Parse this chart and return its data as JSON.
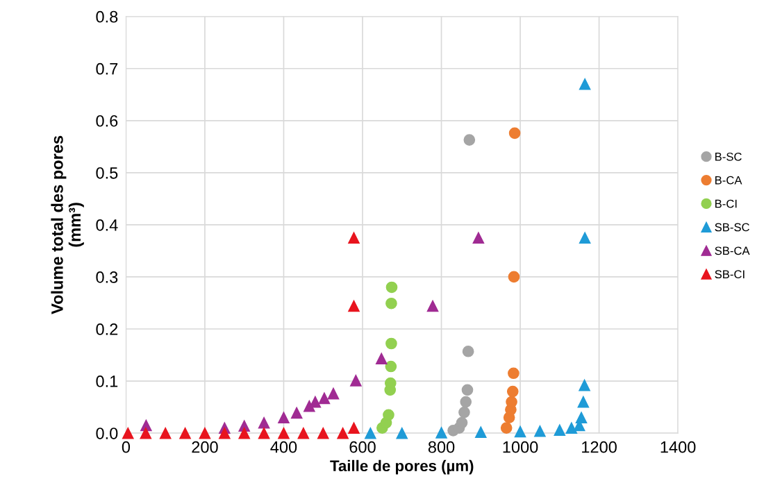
{
  "chart_data": {
    "type": "scatter",
    "xlabel": "Taille de pores (µm)",
    "ylabel": "Volume total des pores\n(mm³)",
    "xlim": [
      0,
      1400
    ],
    "xticks": [
      0,
      200,
      400,
      600,
      800,
      1000,
      1200,
      1400
    ],
    "ylim": [
      0,
      0.8
    ],
    "yticks": [
      {
        "value": 0,
        "label": "0.0"
      },
      {
        "value": 0.1,
        "label": "0.1"
      },
      {
        "value": 0.2,
        "label": "0.2"
      },
      {
        "value": 0.3,
        "label": "0.3"
      },
      {
        "value": 0.4,
        "label": "0.4"
      },
      {
        "value": 0.5,
        "label": "0.5"
      },
      {
        "value": 0.6,
        "label": "0.6"
      },
      {
        "value": 0.7,
        "label": "0.7"
      },
      {
        "value": 0.8,
        "label": "0.8"
      }
    ],
    "grid": true,
    "legend": "right",
    "series": [
      {
        "name": "B-SC",
        "color": "#a5a5a5",
        "marker": "circle",
        "x": [
          830,
          845,
          852,
          858,
          862,
          866,
          868,
          871
        ],
        "values": [
          0.005,
          0.01,
          0.02,
          0.04,
          0.06,
          0.083,
          0.157,
          0.563
        ]
      },
      {
        "name": "B-CA",
        "color": "#ed7d31",
        "marker": "circle",
        "x": [
          965,
          972,
          976,
          978,
          981,
          983,
          984,
          986
        ],
        "values": [
          0.01,
          0.03,
          0.045,
          0.06,
          0.08,
          0.115,
          0.3,
          0.576
        ]
      },
      {
        "name": "B-CI",
        "color": "#92d050",
        "marker": "circle",
        "x": [
          650,
          660,
          666,
          670,
          671,
          672,
          673,
          673,
          674
        ],
        "values": [
          0.01,
          0.02,
          0.035,
          0.083,
          0.096,
          0.128,
          0.172,
          0.249,
          0.28
        ]
      },
      {
        "name": "SB-SC",
        "color": "#1f9bd7",
        "marker": "triangle",
        "x": [
          620,
          700,
          800,
          900,
          1000,
          1050,
          1100,
          1130,
          1150,
          1155,
          1160,
          1163,
          1164,
          1164
        ],
        "values": [
          0,
          0,
          0.001,
          0.002,
          0.003,
          0.004,
          0.006,
          0.01,
          0.015,
          0.03,
          0.06,
          0.092,
          0.375,
          0.67
        ]
      },
      {
        "name": "SB-CA",
        "color": "#a02b93",
        "marker": "triangle",
        "x": [
          51,
          250,
          300,
          350,
          400,
          433,
          465,
          480,
          503,
          526,
          583,
          648,
          778,
          894
        ],
        "values": [
          0.015,
          0.01,
          0.014,
          0.02,
          0.03,
          0.039,
          0.052,
          0.06,
          0.067,
          0.076,
          0.101,
          0.143,
          0.244,
          0.375
        ]
      },
      {
        "name": "SB-CI",
        "color": "#e8141e",
        "marker": "triangle",
        "x": [
          5,
          50,
          100,
          150,
          200,
          250,
          300,
          350,
          400,
          450,
          500,
          550,
          578,
          578,
          578
        ],
        "values": [
          0,
          0,
          0,
          0,
          0,
          0,
          0,
          0,
          0,
          0,
          0,
          0,
          0.01,
          0.244,
          0.375
        ]
      }
    ]
  }
}
